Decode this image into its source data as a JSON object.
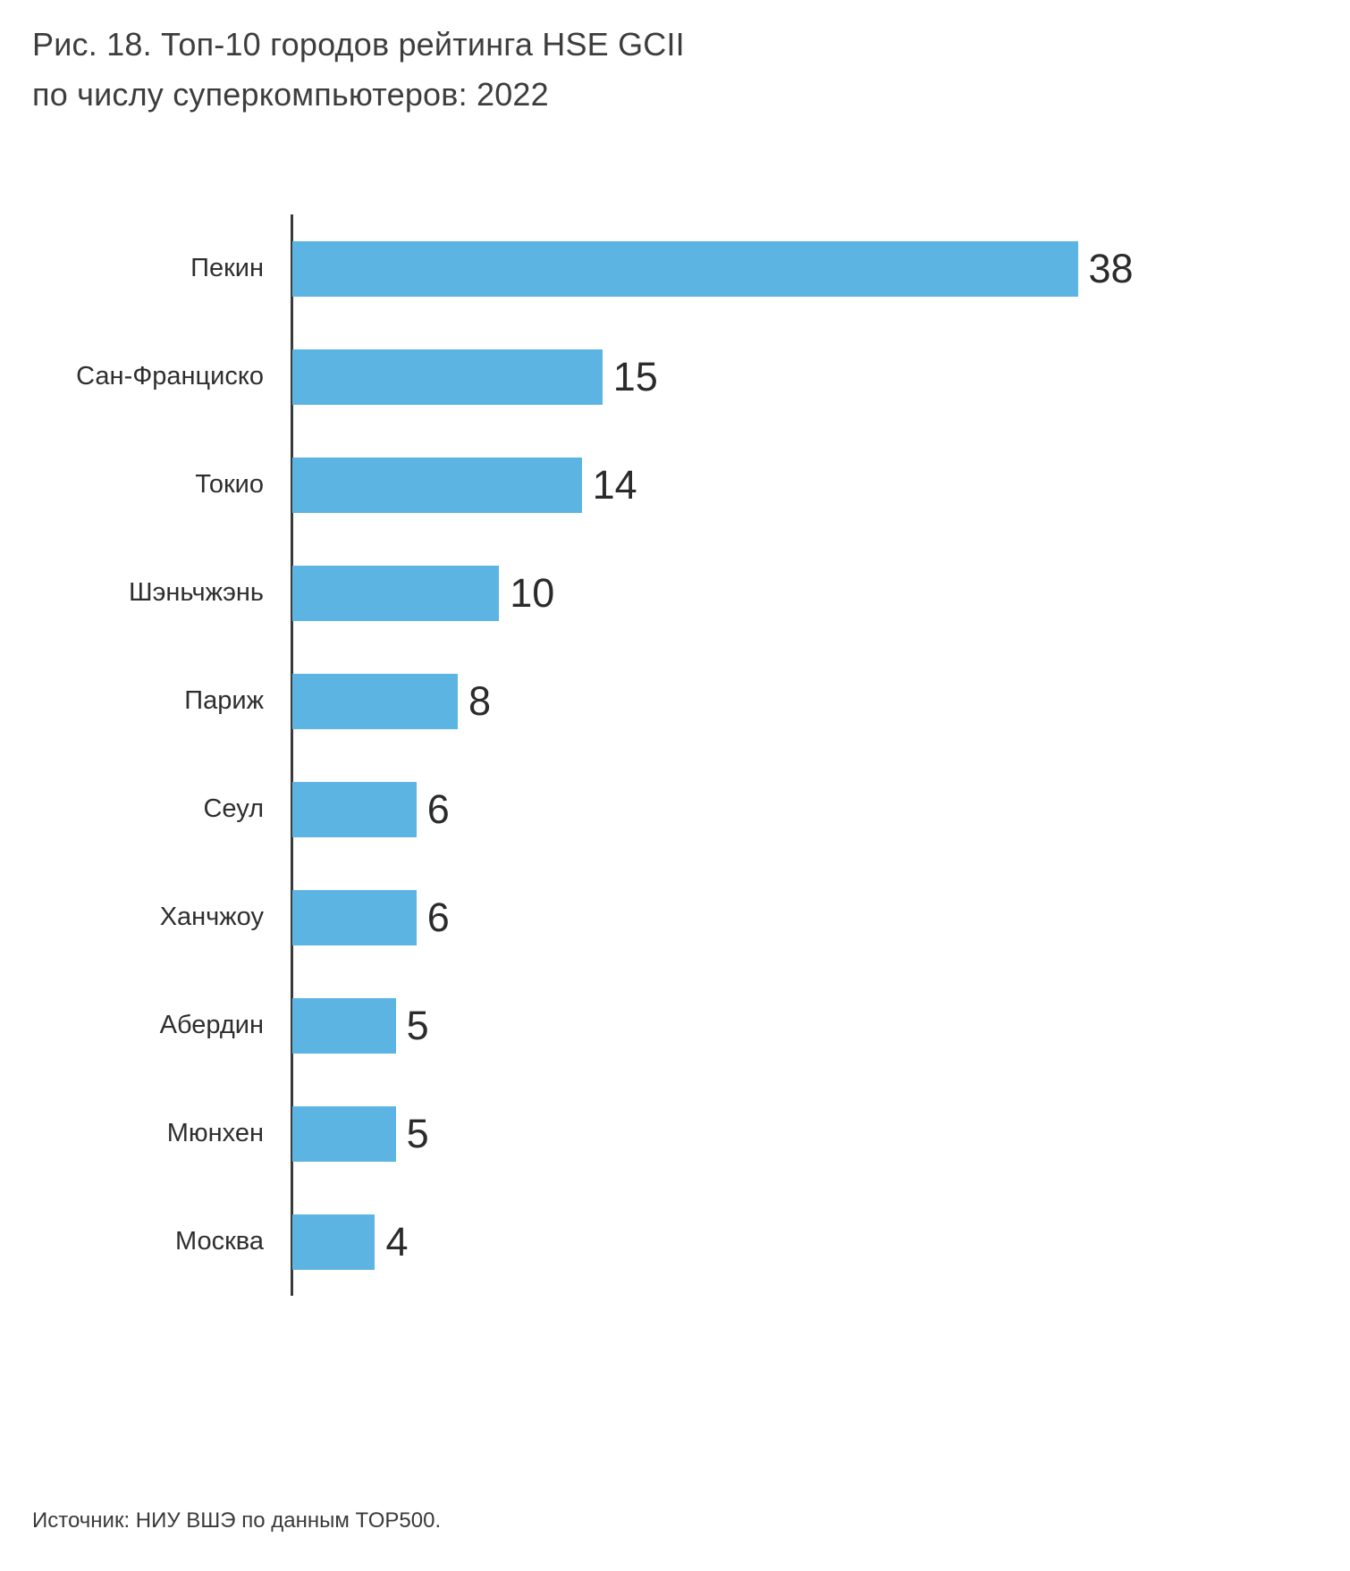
{
  "title": {
    "line1": "Рис. 18. Топ-10 городов рейтинга HSE GCII",
    "line2": "по числу суперкомпьютеров: 2022"
  },
  "source": "Источник: НИУ ВШЭ по данным TOP500.",
  "chart_data": {
    "type": "bar",
    "orientation": "horizontal",
    "title": "Рис. 18. Топ-10 городов рейтинга HSE GCII по числу суперкомпьютеров: 2022",
    "categories": [
      "Пекин",
      "Сан-Франциско",
      "Токио",
      "Шэньчжэнь",
      "Париж",
      "Сеул",
      "Ханчжоу",
      "Абердин",
      "Мюнхен",
      "Москва"
    ],
    "values": [
      38,
      15,
      14,
      10,
      8,
      6,
      6,
      5,
      5,
      4
    ],
    "xlim": [
      0,
      40
    ],
    "bar_color": "#5bb4e2",
    "value_labels": true,
    "grid": false,
    "legend": "none",
    "source": "Источник: НИУ ВШЭ по данным TOP500."
  }
}
